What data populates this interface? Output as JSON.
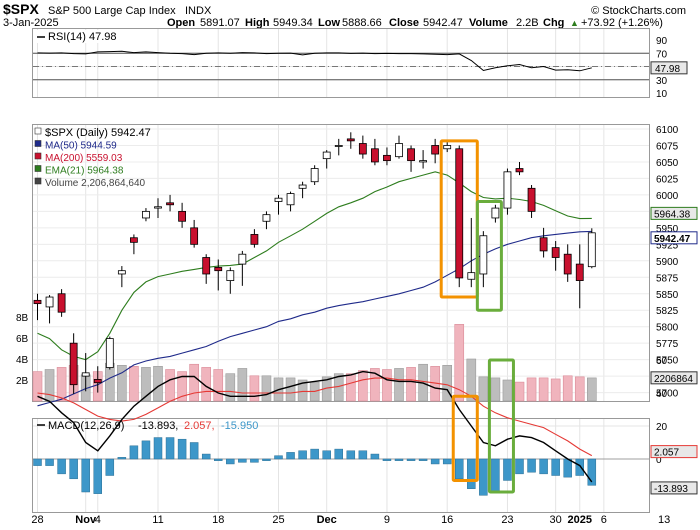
{
  "header": {
    "symbol": "$SPX",
    "name": "S&P 500 Large Cap Index",
    "exchange": "INDX",
    "brand": "© StockCharts.com",
    "date": "3-Jan-2025",
    "open_label": "Open",
    "open": "5891.07",
    "high_label": "High",
    "high": "5949.34",
    "low_label": "Low",
    "low": "5888.66",
    "close_label": "Close",
    "close": "5942.47",
    "volume_label": "Volume",
    "volume": "2.2B",
    "chg_label": "Chg",
    "chg": "+73.92 (+1.26%)",
    "chg_arrow": "▲"
  },
  "colors": {
    "up": "#ffffff",
    "down": "#c8102e",
    "ma50": "#1f2a8a",
    "ma200": "#c8102e",
    "ema21": "#2e7d1e",
    "vol_up": "#bdbdbd",
    "vol_down": "#f0b4bd",
    "macd_hist": "#3d97c9",
    "signal": "#e53935",
    "orange": "#f39200",
    "green": "#6aad3c"
  },
  "chart_data": [
    {
      "type": "line",
      "panel": "rsi",
      "legend": "RSI(14) 47.98",
      "y_ticks": [
        90,
        70,
        50,
        30,
        10
      ],
      "levels": [
        70,
        30
      ],
      "last_value_label": "47.98",
      "values": [
        70.5,
        70.2,
        70.5,
        69.5,
        69,
        72,
        72.5,
        73,
        71,
        72,
        71,
        70,
        69.5,
        68,
        70,
        70.5,
        70,
        71,
        70.5,
        69.5,
        70,
        70.2,
        67.5,
        70,
        70.5,
        70.5,
        69.8,
        70.2,
        69.5,
        69.8,
        69.5,
        69.5,
        69,
        68.5,
        68,
        69,
        59,
        44,
        48,
        51,
        53,
        48,
        50,
        44.5,
        45,
        43.5,
        47.98
      ]
    },
    {
      "type": "candlestick",
      "panel": "price",
      "legend": [
        {
          "text": "$SPX (Daily) 5942.47",
          "color": "#000000"
        },
        {
          "text": "MA(50) 5944.59",
          "color": "#1f2a8a"
        },
        {
          "text": "MA(200) 5559.03",
          "color": "#c8102e"
        },
        {
          "text": "EMA(21) 5964.38",
          "color": "#2e7d1e"
        },
        {
          "text": "Volume 2,206,864,640",
          "color": "#444444"
        }
      ],
      "y_ticks": [
        6100,
        6075,
        6050,
        6025,
        6000,
        5975,
        5950,
        5925,
        5900,
        5875,
        5850,
        5825,
        5800,
        5775,
        5750,
        5725,
        5700
      ],
      "last_labels": [
        {
          "text": "5964.38",
          "value": 5964.38
        },
        {
          "text": "5942.47",
          "value": 5942.47
        }
      ],
      "ohlc": [
        [
          5840,
          5850,
          5810,
          5835
        ],
        [
          5830,
          5848,
          5805,
          5845
        ],
        [
          5850,
          5857,
          5815,
          5822
        ],
        [
          5775,
          5790,
          5698,
          5712
        ],
        [
          5725,
          5760,
          5702,
          5730
        ],
        [
          5720,
          5740,
          5700,
          5715
        ],
        [
          5738,
          5785,
          5735,
          5782
        ],
        [
          5880,
          5892,
          5860,
          5885
        ],
        [
          5935,
          5940,
          5910,
          5928
        ],
        [
          5965,
          5980,
          5960,
          5975
        ],
        [
          5980,
          5995,
          5965,
          5982
        ],
        [
          5988,
          6000,
          5975,
          5985
        ],
        [
          5975,
          5988,
          5950,
          5960
        ],
        [
          5950,
          5962,
          5920,
          5925
        ],
        [
          5905,
          5910,
          5865,
          5880
        ],
        [
          5890,
          5902,
          5855,
          5885
        ],
        [
          5870,
          5890,
          5850,
          5885
        ],
        [
          5895,
          5915,
          5862,
          5910
        ],
        [
          5940,
          5948,
          5920,
          5925
        ],
        [
          5960,
          5975,
          5948,
          5970
        ],
        [
          5990,
          6000,
          5970,
          5995
        ],
        [
          5985,
          6005,
          5975,
          6002
        ],
        [
          6010,
          6020,
          5995,
          6015
        ],
        [
          6020,
          6045,
          6015,
          6040
        ],
        [
          6055,
          6068,
          6040,
          6065
        ],
        [
          6075,
          6085,
          6060,
          6075
        ],
        [
          6085,
          6095,
          6070,
          6082
        ],
        [
          6078,
          6090,
          6055,
          6062
        ],
        [
          6070,
          6085,
          6045,
          6050
        ],
        [
          6060,
          6072,
          6045,
          6052
        ],
        [
          6058,
          6090,
          6055,
          6078
        ],
        [
          6070,
          6075,
          6035,
          6052
        ],
        [
          6050,
          6068,
          6040,
          6052
        ],
        [
          6075,
          6085,
          6048,
          6062
        ],
        [
          6070,
          6080,
          6065,
          6075
        ],
        [
          6070,
          6075,
          5860,
          5874
        ],
        [
          5872,
          5965,
          5860,
          5882
        ],
        [
          5880,
          5945,
          5860,
          5938
        ],
        [
          5965,
          5985,
          5958,
          5980
        ],
        [
          5980,
          6040,
          5970,
          6035
        ],
        [
          6040,
          6050,
          6030,
          6035
        ],
        [
          6010,
          6015,
          5965,
          5975
        ],
        [
          5935,
          5950,
          5905,
          5915
        ],
        [
          5920,
          5930,
          5885,
          5905
        ],
        [
          5910,
          5925,
          5868,
          5880
        ],
        [
          5895,
          5925,
          5828,
          5870
        ],
        [
          5891.07,
          5949.34,
          5888.66,
          5942.47
        ]
      ],
      "ma50": [
        5680,
        5685,
        5690,
        5698,
        5706,
        5712,
        5722,
        5730,
        5742,
        5748,
        5752,
        5755,
        5760,
        5765,
        5770,
        5778,
        5785,
        5790,
        5795,
        5800,
        5808,
        5812,
        5818,
        5822,
        5828,
        5832,
        5835,
        5838,
        5842,
        5846,
        5850,
        5855,
        5860,
        5868,
        5878,
        5888,
        5900,
        5910,
        5918,
        5925,
        5930,
        5935,
        5938,
        5940,
        5942,
        5944,
        5944.59
      ],
      "ema21": [
        5790,
        5782,
        5765,
        5755,
        5750,
        5762,
        5790,
        5825,
        5852,
        5868,
        5876,
        5880,
        5884,
        5887,
        5890,
        5892,
        5893,
        5895,
        5905,
        5915,
        5928,
        5938,
        5948,
        5960,
        5972,
        5982,
        5988,
        5995,
        6005,
        6012,
        6020,
        6025,
        6030,
        6035,
        6030,
        6018,
        6005,
        5996,
        5994,
        5995,
        5993,
        5990,
        5984,
        5976,
        5968,
        5964,
        5964.38
      ],
      "annotations": [
        {
          "label": "orange-box",
          "from_index": 34,
          "to_index": 36,
          "top": 6082,
          "bottom": 5845,
          "color": "#f39200"
        },
        {
          "label": "green-box",
          "from_index": 37,
          "to_index": 38,
          "top": 5990,
          "bottom": 5825,
          "color": "#6aad3c"
        }
      ]
    },
    {
      "type": "bar",
      "panel": "volume",
      "y_ticks": [
        "8B",
        "6B",
        "4B",
        "2B"
      ],
      "last_value_label": "2206864",
      "values": [
        2.8,
        3.0,
        3.2,
        3.4,
        2.5,
        2.8,
        3.6,
        3.4,
        3.3,
        3.2,
        3.3,
        3.0,
        2.8,
        3.5,
        3.2,
        3.0,
        2.6,
        3.1,
        2.4,
        2.4,
        2.2,
        2.2,
        2.0,
        1.8,
        2.3,
        2.6,
        2.6,
        2.9,
        3.1,
        3.0,
        3.1,
        3.2,
        3.5,
        3.3,
        3.4,
        7.3,
        4.0,
        2.3,
        2.2,
        2.0,
        1.8,
        2.2,
        2.2,
        2.1,
        2.4,
        2.3,
        2.2
      ]
    },
    {
      "type": "line",
      "panel": "macd",
      "legend": [
        {
          "text": "MACD(12,26,9)",
          "color": "#000000"
        },
        {
          "text": "-13.893,",
          "color": "#000000"
        },
        {
          "text": "2.057,",
          "color": "#e53935"
        },
        {
          "text": "-15.950",
          "color": "#3d97c9"
        }
      ],
      "y_ticks": [
        60,
        40,
        20,
        0
      ],
      "last_labels": [
        {
          "text": "2.057",
          "value": 2.057
        },
        {
          "text": "-13.893",
          "value": -13.893
        }
      ],
      "macd": [
        38,
        35,
        28,
        22,
        10,
        5,
        14,
        24,
        32,
        38,
        44,
        48,
        50,
        50,
        44,
        40,
        38,
        38,
        38,
        39,
        42,
        44,
        46,
        47,
        48,
        50,
        51,
        53,
        52,
        48,
        47,
        47,
        46,
        43,
        42,
        30,
        20,
        10,
        8,
        12,
        14,
        13,
        10,
        5,
        0,
        -4,
        -13.893
      ],
      "signal": [
        40,
        39,
        37,
        34,
        30,
        26,
        24,
        23,
        24,
        27,
        31,
        35,
        38,
        40,
        41,
        41,
        41,
        40,
        40,
        40,
        40,
        40,
        41,
        41,
        43,
        44,
        46,
        48,
        49,
        49,
        48,
        48,
        47,
        46,
        45,
        42,
        38,
        32,
        28,
        25,
        23,
        21,
        19,
        15,
        11,
        6,
        2.057
      ],
      "histogram": [
        -4,
        -4,
        -9,
        -12,
        -20,
        -21,
        -10,
        1,
        8,
        11,
        13,
        13,
        12,
        10,
        3,
        -1,
        -3,
        -2,
        -2,
        -1,
        2,
        4,
        5,
        6,
        5,
        6,
        5,
        5,
        3,
        -1,
        -1,
        -1,
        -1,
        -3,
        -3,
        -12,
        -18,
        -22,
        -20,
        -13,
        -9,
        -8,
        -9,
        -10,
        -11,
        -10,
        -15.95
      ],
      "annotations": [
        {
          "label": "orange-box",
          "from_index": 35,
          "to_index": 36,
          "top": 38,
          "bottom": -13,
          "color": "#f39200"
        },
        {
          "label": "green-box",
          "from_index": 38,
          "to_index": 39,
          "top": 84,
          "bottom": -20,
          "color": "#6aad3c"
        }
      ]
    }
  ],
  "x_axis": {
    "labels": [
      {
        "text": "28",
        "index": 0,
        "bold": false
      },
      {
        "text": "Nov",
        "index": 4,
        "bold": true
      },
      {
        "text": "4",
        "index": 5,
        "bold": false
      },
      {
        "text": "11",
        "index": 10,
        "bold": false
      },
      {
        "text": "18",
        "index": 15,
        "bold": false
      },
      {
        "text": "25",
        "index": 20,
        "bold": false
      },
      {
        "text": "Dec",
        "index": 24,
        "bold": true
      },
      {
        "text": "9",
        "index": 29,
        "bold": false
      },
      {
        "text": "16",
        "index": 34,
        "bold": false
      },
      {
        "text": "23",
        "index": 39,
        "bold": false
      },
      {
        "text": "30",
        "index": 43,
        "bold": false
      },
      {
        "text": "2025",
        "index": 45,
        "bold": true
      },
      {
        "text": "6",
        "index": 47,
        "bold": false
      },
      {
        "text": "13",
        "index": 52,
        "bold": false
      }
    ]
  }
}
